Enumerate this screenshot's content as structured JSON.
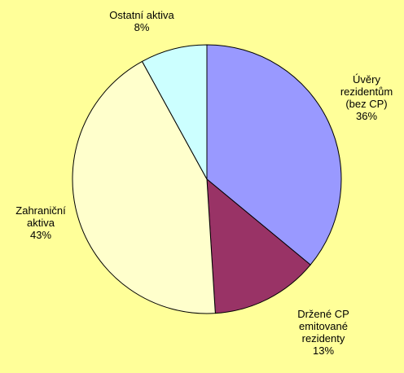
{
  "chart_data": {
    "type": "pie",
    "categories": [
      "Úvěry\nrezidentům\n(bez CP)",
      "Držené CP\nemitované\nrezidenty",
      "Zahraniční\naktiva",
      "Ostatní aktiva"
    ],
    "values": [
      36,
      13,
      43,
      8
    ],
    "value_labels": [
      "36%",
      "13%",
      "43%",
      "8%"
    ],
    "colors": [
      "#9999ff",
      "#993366",
      "#ffffcc",
      "#ccffff"
    ]
  }
}
